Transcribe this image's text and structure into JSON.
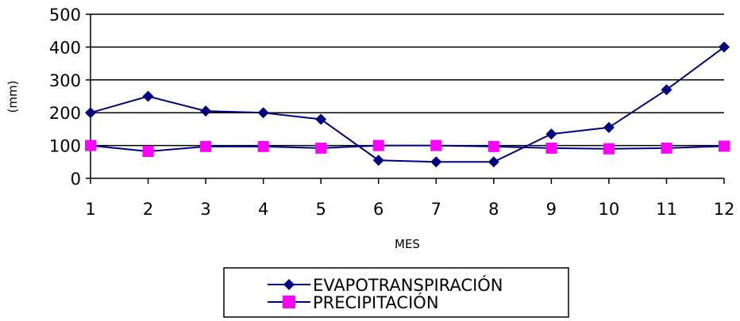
{
  "chart_data": {
    "type": "line",
    "xlabel": "MES",
    "ylabel": "(mm)",
    "x": [
      1,
      2,
      3,
      4,
      5,
      6,
      7,
      8,
      9,
      10,
      11,
      12
    ],
    "ylim": [
      0,
      500
    ],
    "yticks": [
      0,
      100,
      200,
      300,
      400,
      500
    ],
    "grid": "horizontal",
    "legend": "bottom",
    "series": [
      {
        "name": "EVAPOTRANSPIRACIÓN",
        "color": "#000080",
        "marker": "diamond",
        "values": [
          200,
          250,
          205,
          200,
          180,
          55,
          50,
          50,
          135,
          155,
          270,
          400
        ]
      },
      {
        "name": "PRECIPITACIÓN",
        "color": "#ff00ff",
        "marker": "square",
        "values": [
          100,
          82,
          97,
          97,
          92,
          100,
          100,
          97,
          92,
          90,
          92,
          98
        ]
      }
    ]
  }
}
